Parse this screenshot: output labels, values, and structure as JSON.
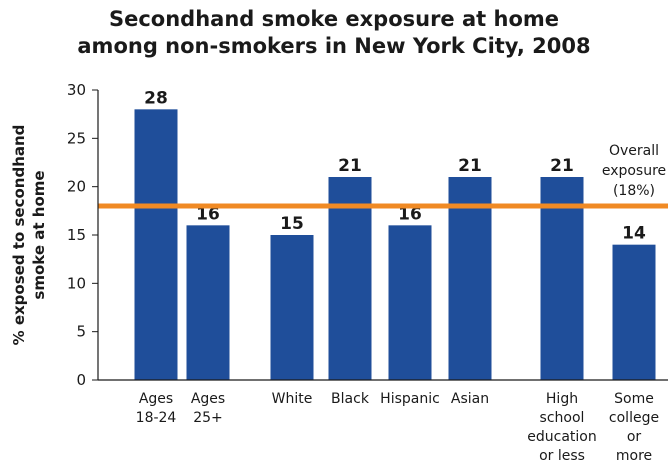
{
  "chart_data": {
    "type": "bar",
    "title_lines": [
      "Secondhand smoke exposure at home",
      "among non-smokers in New York City, 2008"
    ],
    "ylabel_lines": [
      "% exposed to secondhand",
      "smoke at home"
    ],
    "ylim": [
      0,
      30
    ],
    "yticks": [
      0,
      5,
      10,
      15,
      20,
      25,
      30
    ],
    "bar_color": "#1f4e9a",
    "categories": [
      {
        "label": [
          "Ages",
          "18-24"
        ],
        "value": 28,
        "group": 0
      },
      {
        "label": [
          "Ages",
          "25+"
        ],
        "value": 16,
        "group": 0
      },
      {
        "label": [
          "White"
        ],
        "value": 15,
        "group": 1
      },
      {
        "label": [
          "Black"
        ],
        "value": 21,
        "group": 1
      },
      {
        "label": [
          "Hispanic"
        ],
        "value": 16,
        "group": 1
      },
      {
        "label": [
          "Asian"
        ],
        "value": 21,
        "group": 1
      },
      {
        "label": [
          "High",
          "school",
          "education",
          "or less"
        ],
        "value": 21,
        "group": 2
      },
      {
        "label": [
          "Some",
          "college",
          "or",
          "more"
        ],
        "value": 14,
        "group": 2
      }
    ],
    "reference_line": {
      "value": 18,
      "color": "#f08a24",
      "label_lines": [
        "Overall",
        "exposure",
        "(18%)"
      ]
    }
  }
}
